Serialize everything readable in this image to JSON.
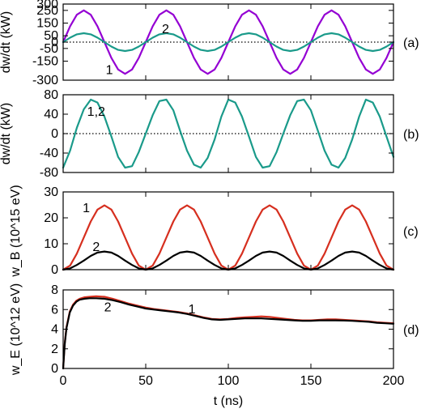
{
  "chart_data": [
    {
      "type": "line",
      "panel_label": "(a)",
      "ylabel": "dw/dt (kW)",
      "xlim": [
        0,
        200
      ],
      "ylim": [
        -300,
        300
      ],
      "yticks": [
        "300",
        "250",
        "150",
        "50",
        "0",
        "-50",
        "-150",
        "-300"
      ],
      "ytick_values": [
        300,
        250,
        150,
        50,
        0,
        -50,
        -150,
        -300
      ],
      "zero_line": true,
      "series": [
        {
          "name": "1",
          "color": "#9400d3",
          "x": [
            0,
            4.2,
            8.3,
            12.5,
            16.7,
            20.8,
            25,
            29.2,
            33.3,
            37.5,
            41.7,
            45.8,
            50,
            54.2,
            58.3,
            62.5,
            66.7,
            70.8,
            75,
            79.2,
            83.3,
            87.5,
            91.7,
            95.8,
            100,
            104.2,
            108.3,
            112.5,
            116.7,
            120.8,
            125,
            129.2,
            133.3,
            137.5,
            141.7,
            145.8,
            150,
            154.2,
            158.3,
            162.5,
            166.7,
            170.8,
            175,
            179.2,
            183.3,
            187.5,
            191.7,
            195.8,
            200
          ],
          "y": [
            0,
            125,
            216,
            250,
            216,
            125,
            0,
            -125,
            -216,
            -250,
            -216,
            -125,
            0,
            125,
            216,
            250,
            216,
            125,
            0,
            -125,
            -216,
            -250,
            -216,
            -125,
            0,
            125,
            216,
            250,
            216,
            125,
            0,
            -125,
            -216,
            -250,
            -216,
            -125,
            0,
            125,
            216,
            250,
            216,
            125,
            0,
            -125,
            -216,
            -250,
            -216,
            -125,
            0
          ]
        },
        {
          "name": "2",
          "color": "#1a9a8a",
          "x": [
            0,
            4.2,
            8.3,
            12.5,
            16.7,
            20.8,
            25,
            29.2,
            33.3,
            37.5,
            41.7,
            45.8,
            50,
            54.2,
            58.3,
            62.5,
            66.7,
            70.8,
            75,
            79.2,
            83.3,
            87.5,
            91.7,
            95.8,
            100,
            104.2,
            108.3,
            112.5,
            116.7,
            120.8,
            125,
            129.2,
            133.3,
            137.5,
            141.7,
            145.8,
            150,
            154.2,
            158.3,
            162.5,
            166.7,
            170.8,
            175,
            179.2,
            183.3,
            187.5,
            191.7,
            195.8,
            200
          ],
          "y": [
            0,
            35,
            61,
            70,
            61,
            35,
            0,
            -35,
            -61,
            -70,
            -61,
            -35,
            0,
            35,
            61,
            70,
            61,
            35,
            0,
            -35,
            -61,
            -70,
            -61,
            -35,
            0,
            35,
            61,
            70,
            61,
            35,
            0,
            -35,
            -61,
            -70,
            -61,
            -35,
            0,
            35,
            61,
            70,
            61,
            35,
            0,
            -35,
            -61,
            -70,
            -61,
            -35,
            0
          ]
        }
      ],
      "annotations": [
        {
          "text": "1",
          "x": 28,
          "y": -215
        },
        {
          "text": "2",
          "x": 62,
          "y": 110
        }
      ]
    },
    {
      "type": "line",
      "panel_label": "(b)",
      "ylabel": "dw/dt (kW)",
      "xlim": [
        0,
        200
      ],
      "ylim": [
        -80,
        80
      ],
      "yticks": [
        "80",
        "40",
        "0",
        "-40",
        "-80"
      ],
      "ytick_values": [
        80,
        40,
        0,
        -40,
        -80
      ],
      "zero_line": true,
      "series": [
        {
          "name": "1,2",
          "color": "#1a9a8a",
          "x": [
            0,
            4.2,
            8.3,
            12.5,
            16.7,
            20.8,
            25,
            29.2,
            33.3,
            37.5,
            41.7,
            45.8,
            50,
            54.2,
            58.3,
            62.5,
            66.7,
            70.8,
            75,
            79.2,
            83.3,
            87.5,
            91.7,
            95.8,
            100,
            104.2,
            108.3,
            112.5,
            116.7,
            120.8,
            125,
            129.2,
            133.3,
            137.5,
            141.7,
            145.8,
            150,
            154.2,
            158.3,
            162.5,
            166.7,
            170.8,
            175,
            179.2,
            183.3,
            187.5,
            191.7,
            195.8,
            200
          ],
          "y": [
            -70,
            -35,
            12,
            50,
            70,
            64,
            35,
            -6,
            -48,
            -70,
            -67,
            -38,
            0,
            38,
            67,
            70,
            48,
            6,
            -35,
            -64,
            -70,
            -50,
            -12,
            35,
            70,
            64,
            35,
            -6,
            -48,
            -70,
            -67,
            -38,
            0,
            38,
            67,
            70,
            48,
            6,
            -35,
            -64,
            -70,
            -50,
            -12,
            35,
            70,
            64,
            35,
            -6,
            -48
          ]
        }
      ],
      "annotations": [
        {
          "text": "1,2",
          "x": 20,
          "y": 47
        }
      ]
    },
    {
      "type": "line",
      "panel_label": "(c)",
      "ylabel": "w_B (10^15 eV)",
      "xlim": [
        0,
        200
      ],
      "ylim": [
        0,
        30
      ],
      "yticks": [
        "30",
        "20",
        "10",
        "0"
      ],
      "ytick_values": [
        30,
        20,
        10,
        0
      ],
      "zero_line": false,
      "series": [
        {
          "name": "1",
          "color": "#d62f1f",
          "x": [
            0,
            4.2,
            8.3,
            12.5,
            16.7,
            20.8,
            25,
            29.2,
            33.3,
            37.5,
            41.7,
            45.8,
            50,
            54.2,
            58.3,
            62.5,
            66.7,
            70.8,
            75,
            79.2,
            83.3,
            87.5,
            91.7,
            95.8,
            100,
            104.2,
            108.3,
            112.5,
            116.7,
            120.8,
            125,
            129.2,
            133.3,
            137.5,
            141.7,
            145.8,
            150,
            154.2,
            158.3,
            162.5,
            166.7,
            170.8,
            175,
            179.2,
            183.3,
            187.5,
            191.7,
            195.8,
            200
          ],
          "y": [
            0,
            1.6,
            6.2,
            12.4,
            18.6,
            23.2,
            24.8,
            23.2,
            18.6,
            12.4,
            6.2,
            1.6,
            0,
            1.6,
            6.2,
            12.4,
            18.6,
            23.2,
            24.8,
            23.2,
            18.6,
            12.4,
            6.2,
            1.6,
            0,
            1.6,
            6.2,
            12.4,
            18.6,
            23.2,
            24.8,
            23.2,
            18.6,
            12.4,
            6.2,
            1.6,
            0,
            1.6,
            6.2,
            12.4,
            18.6,
            23.2,
            24.8,
            23.2,
            18.6,
            12.4,
            6.2,
            1.6,
            0
          ]
        },
        {
          "name": "2",
          "color": "#000000",
          "x": [
            0,
            4.2,
            8.3,
            12.5,
            16.7,
            20.8,
            25,
            29.2,
            33.3,
            37.5,
            41.7,
            45.8,
            50,
            54.2,
            58.3,
            62.5,
            66.7,
            70.8,
            75,
            79.2,
            83.3,
            87.5,
            91.7,
            95.8,
            100,
            104.2,
            108.3,
            112.5,
            116.7,
            120.8,
            125,
            129.2,
            133.3,
            137.5,
            141.7,
            145.8,
            150,
            154.2,
            158.3,
            162.5,
            166.7,
            170.8,
            175,
            179.2,
            183.3,
            187.5,
            191.7,
            195.8,
            200
          ],
          "y": [
            0,
            0.5,
            1.8,
            3.5,
            5.3,
            6.6,
            7.0,
            6.6,
            5.3,
            3.5,
            1.8,
            0.5,
            0,
            0.5,
            1.8,
            3.5,
            5.3,
            6.6,
            7.0,
            6.6,
            5.3,
            3.5,
            1.8,
            0.5,
            0,
            0.5,
            1.8,
            3.5,
            5.3,
            6.6,
            7.0,
            6.6,
            5.3,
            3.5,
            1.8,
            0.5,
            0,
            0.5,
            1.8,
            3.5,
            5.3,
            6.6,
            7.0,
            6.6,
            5.3,
            3.5,
            1.8,
            0.5,
            0
          ]
        }
      ],
      "annotations": [
        {
          "text": "1",
          "x": 14,
          "y": 24
        },
        {
          "text": "2",
          "x": 20,
          "y": 9
        }
      ]
    },
    {
      "type": "line",
      "panel_label": "(d)",
      "ylabel": "w_E (10^12 eV)",
      "xlabel": "t (ns)",
      "xlim": [
        0,
        200
      ],
      "ylim": [
        0,
        8
      ],
      "xticks": [
        "0",
        "50",
        "100",
        "150",
        "200"
      ],
      "xtick_values": [
        0,
        50,
        100,
        150,
        200
      ],
      "yticks": [
        "8",
        "6",
        "4",
        "2",
        "0"
      ],
      "ytick_values": [
        8,
        6,
        4,
        2,
        0
      ],
      "zero_line": false,
      "series": [
        {
          "name": "1",
          "color": "#d62f1f",
          "x": [
            0,
            1,
            2,
            4,
            6,
            8,
            10,
            13,
            16,
            20,
            25,
            30,
            35,
            40,
            45,
            50,
            55,
            60,
            65,
            70,
            75,
            80,
            85,
            90,
            95,
            100,
            105,
            110,
            115,
            120,
            125,
            130,
            135,
            140,
            145,
            150,
            155,
            160,
            165,
            170,
            175,
            180,
            185,
            190,
            195,
            200
          ],
          "y": [
            0,
            2.6,
            4.2,
            5.8,
            6.5,
            6.9,
            7.1,
            7.25,
            7.3,
            7.35,
            7.3,
            7.1,
            6.85,
            6.6,
            6.4,
            6.2,
            6.05,
            5.95,
            5.85,
            5.75,
            5.6,
            5.4,
            5.2,
            5.05,
            5.0,
            5.05,
            5.15,
            5.2,
            5.25,
            5.3,
            5.25,
            5.15,
            5.05,
            4.95,
            4.9,
            4.9,
            4.95,
            5.0,
            5.0,
            4.95,
            4.9,
            4.85,
            4.8,
            4.7,
            4.65,
            4.6
          ]
        },
        {
          "name": "2",
          "color": "#000000",
          "x": [
            0,
            1,
            2,
            4,
            6,
            8,
            10,
            13,
            16,
            20,
            25,
            30,
            35,
            40,
            45,
            50,
            55,
            60,
            65,
            70,
            75,
            80,
            85,
            90,
            95,
            100,
            105,
            110,
            115,
            120,
            125,
            130,
            135,
            140,
            145,
            150,
            155,
            160,
            165,
            170,
            175,
            180,
            185,
            190,
            195,
            200
          ],
          "y": [
            0,
            2.5,
            4.1,
            5.7,
            6.4,
            6.8,
            7.0,
            7.1,
            7.15,
            7.15,
            7.1,
            6.95,
            6.75,
            6.5,
            6.3,
            6.1,
            6.0,
            5.9,
            5.8,
            5.7,
            5.55,
            5.35,
            5.15,
            5.0,
            4.95,
            5.0,
            5.05,
            5.1,
            5.1,
            5.1,
            5.05,
            5.0,
            4.95,
            4.9,
            4.85,
            4.85,
            4.9,
            4.9,
            4.9,
            4.88,
            4.85,
            4.8,
            4.75,
            4.65,
            4.6,
            4.55
          ]
        }
      ],
      "annotations": [
        {
          "text": "1",
          "x": 78,
          "y": 6.1
        },
        {
          "text": "2",
          "x": 27,
          "y": 6.3
        }
      ]
    }
  ]
}
